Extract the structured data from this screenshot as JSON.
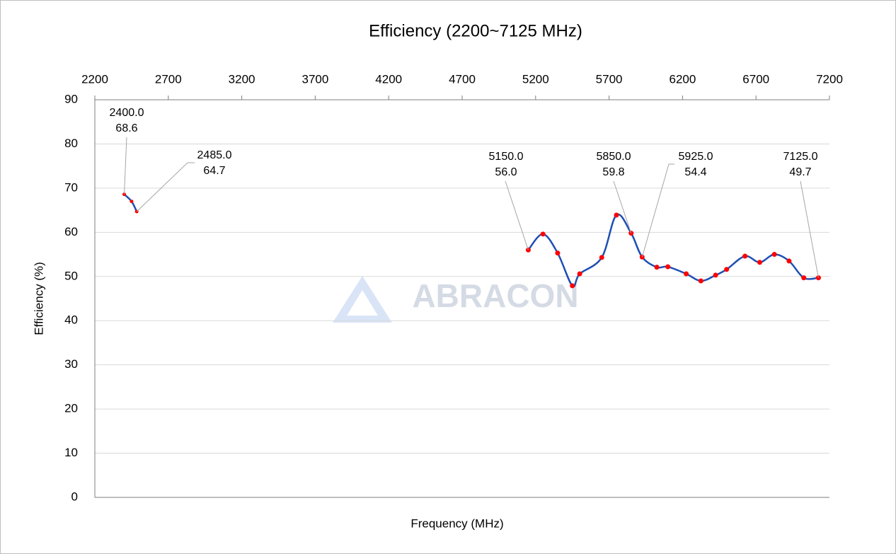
{
  "chart_data": {
    "type": "line",
    "title": "Efficiency (2200~7125 MHz)",
    "x_label": "Frequency (MHz)",
    "y_label": "Efficiency (%)",
    "watermark": "ABRACON",
    "xlim": [
      2200,
      7200
    ],
    "xticks": [
      2200,
      2700,
      3200,
      3700,
      4200,
      4700,
      5200,
      5700,
      6200,
      6700,
      7200
    ],
    "ylim": [
      0,
      90
    ],
    "yticks": [
      0,
      10,
      20,
      30,
      40,
      50,
      60,
      70,
      80,
      90
    ],
    "grid": true,
    "marker_color": "#ff0000",
    "series": [
      {
        "color": "#1f4fb4",
        "x": [
          2400,
          2450,
          2485
        ],
        "values": [
          68.6,
          67.0,
          64.7
        ],
        "x_labels": [
          "2400.0",
          null,
          "2485.0"
        ],
        "value_labels": [
          "68.6",
          null,
          "64.7"
        ]
      },
      {
        "color": "#1f4fb4",
        "x": [
          5150,
          5250,
          5350,
          5450,
          5500,
          5650,
          5750,
          5850,
          5925,
          6025,
          6100,
          6225,
          6325,
          6425,
          6500,
          6625,
          6725,
          6825,
          6925,
          7025,
          7125
        ],
        "values": [
          56.0,
          59.6,
          55.3,
          47.9,
          50.6,
          54.3,
          63.9,
          59.8,
          54.4,
          52.1,
          52.2,
          50.6,
          49.0,
          50.3,
          51.6,
          54.6,
          53.2,
          55.0,
          53.5,
          49.7,
          49.7
        ],
        "x_labels": [
          "5150.0",
          null,
          null,
          null,
          null,
          null,
          null,
          "5850.0",
          "5925.0",
          null,
          null,
          null,
          null,
          null,
          null,
          null,
          null,
          null,
          null,
          null,
          "7125.0"
        ],
        "value_labels": [
          "56.0",
          null,
          null,
          null,
          null,
          null,
          null,
          "59.8",
          "54.4",
          null,
          null,
          null,
          null,
          null,
          null,
          null,
          null,
          null,
          null,
          null,
          "49.7"
        ]
      }
    ]
  }
}
